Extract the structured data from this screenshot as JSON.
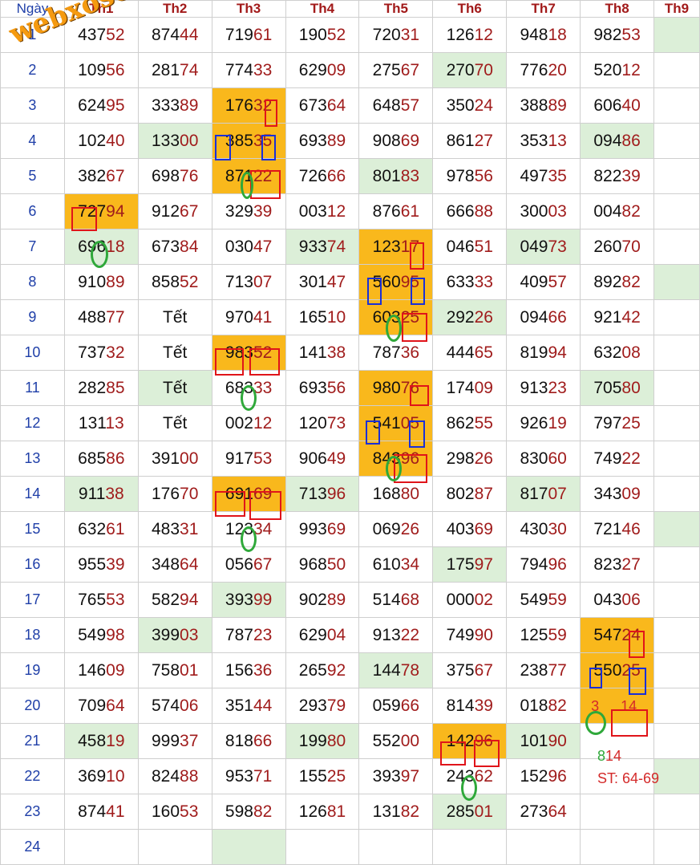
{
  "watermark": "webxoso.net",
  "headers": [
    "Ngày",
    "Th1",
    "Th2",
    "Th3",
    "Th4",
    "Th5",
    "Th6",
    "Th7",
    "Th8",
    "Th9"
  ],
  "rows": [
    {
      "day": "1",
      "cells": [
        {
          "v": "43752"
        },
        {
          "v": "87444"
        },
        {
          "v": "71961"
        },
        {
          "v": "19052"
        },
        {
          "v": "72031"
        },
        {
          "v": "12612"
        },
        {
          "v": "94818"
        },
        {
          "v": "98253"
        },
        {
          "v": "",
          "bg": "g"
        }
      ]
    },
    {
      "day": "2",
      "cells": [
        {
          "v": "10956"
        },
        {
          "v": "28174"
        },
        {
          "v": "77433"
        },
        {
          "v": "62909"
        },
        {
          "v": "27567"
        },
        {
          "v": "27070",
          "bg": "g"
        },
        {
          "v": "77620"
        },
        {
          "v": "52012"
        },
        {
          "v": ""
        }
      ]
    },
    {
      "day": "3",
      "cells": [
        {
          "v": "62495"
        },
        {
          "v": "33389"
        },
        {
          "v": "17632",
          "bg": "o"
        },
        {
          "v": "67364"
        },
        {
          "v": "64857"
        },
        {
          "v": "35024"
        },
        {
          "v": "38889"
        },
        {
          "v": "60640"
        },
        {
          "v": ""
        }
      ]
    },
    {
      "day": "4",
      "cells": [
        {
          "v": "10240"
        },
        {
          "v": "13300",
          "bg": "g"
        },
        {
          "v": "38535",
          "bg": "o"
        },
        {
          "v": "69389"
        },
        {
          "v": "90869"
        },
        {
          "v": "86127"
        },
        {
          "v": "35313"
        },
        {
          "v": "09486",
          "bg": "g"
        },
        {
          "v": ""
        }
      ]
    },
    {
      "day": "5",
      "cells": [
        {
          "v": "38267"
        },
        {
          "v": "69876"
        },
        {
          "v": "87122",
          "bg": "o"
        },
        {
          "v": "72666"
        },
        {
          "v": "80183",
          "bg": "g"
        },
        {
          "v": "97856"
        },
        {
          "v": "49735"
        },
        {
          "v": "82239"
        },
        {
          "v": ""
        }
      ]
    },
    {
      "day": "6",
      "cells": [
        {
          "v": "72794",
          "bg": "o"
        },
        {
          "v": "91267"
        },
        {
          "v": "32939"
        },
        {
          "v": "00312"
        },
        {
          "v": "87661"
        },
        {
          "v": "66688"
        },
        {
          "v": "30003"
        },
        {
          "v": "00482"
        },
        {
          "v": ""
        }
      ]
    },
    {
      "day": "7",
      "cells": [
        {
          "v": "69618",
          "bg": "g"
        },
        {
          "v": "67384"
        },
        {
          "v": "03047"
        },
        {
          "v": "93374",
          "bg": "g"
        },
        {
          "v": "12317",
          "bg": "o"
        },
        {
          "v": "04651"
        },
        {
          "v": "04973",
          "bg": "g"
        },
        {
          "v": "26070"
        },
        {
          "v": ""
        }
      ]
    },
    {
      "day": "8",
      "cells": [
        {
          "v": "91089"
        },
        {
          "v": "85852"
        },
        {
          "v": "71307"
        },
        {
          "v": "30147"
        },
        {
          "v": "56095",
          "bg": "o"
        },
        {
          "v": "63333"
        },
        {
          "v": "40957"
        },
        {
          "v": "89282"
        },
        {
          "v": "",
          "bg": "g"
        }
      ]
    },
    {
      "day": "9",
      "cells": [
        {
          "v": "48877"
        },
        {
          "v": "Tết"
        },
        {
          "v": "97041"
        },
        {
          "v": "16510"
        },
        {
          "v": "60325",
          "bg": "o"
        },
        {
          "v": "29226",
          "bg": "g"
        },
        {
          "v": "09466"
        },
        {
          "v": "92142"
        },
        {
          "v": ""
        }
      ]
    },
    {
      "day": "10",
      "cells": [
        {
          "v": "73732"
        },
        {
          "v": "Tết"
        },
        {
          "v": "98352",
          "bg": "o"
        },
        {
          "v": "14138"
        },
        {
          "v": "78736"
        },
        {
          "v": "44465"
        },
        {
          "v": "81994"
        },
        {
          "v": "63208"
        },
        {
          "v": ""
        }
      ]
    },
    {
      "day": "11",
      "cells": [
        {
          "v": "28285"
        },
        {
          "v": "Tết",
          "bg": "g"
        },
        {
          "v": "68333"
        },
        {
          "v": "69356"
        },
        {
          "v": "98076",
          "bg": "o"
        },
        {
          "v": "17409"
        },
        {
          "v": "91323"
        },
        {
          "v": "70580",
          "bg": "g"
        },
        {
          "v": ""
        }
      ]
    },
    {
      "day": "12",
      "cells": [
        {
          "v": "13113"
        },
        {
          "v": "Tết"
        },
        {
          "v": "00212"
        },
        {
          "v": "12073"
        },
        {
          "v": "54105",
          "bg": "o"
        },
        {
          "v": "86255"
        },
        {
          "v": "92619"
        },
        {
          "v": "79725"
        },
        {
          "v": ""
        }
      ]
    },
    {
      "day": "13",
      "cells": [
        {
          "v": "68586"
        },
        {
          "v": "39100"
        },
        {
          "v": "91753"
        },
        {
          "v": "90649"
        },
        {
          "v": "84396",
          "bg": "o"
        },
        {
          "v": "29826"
        },
        {
          "v": "83060"
        },
        {
          "v": "74922"
        },
        {
          "v": ""
        }
      ]
    },
    {
      "day": "14",
      "cells": [
        {
          "v": "91138",
          "bg": "g"
        },
        {
          "v": "17670"
        },
        {
          "v": "69169",
          "bg": "o"
        },
        {
          "v": "71396",
          "bg": "g"
        },
        {
          "v": "16880"
        },
        {
          "v": "80287"
        },
        {
          "v": "81707",
          "bg": "g"
        },
        {
          "v": "34309"
        },
        {
          "v": ""
        }
      ]
    },
    {
      "day": "15",
      "cells": [
        {
          "v": "63261"
        },
        {
          "v": "48331"
        },
        {
          "v": "12334"
        },
        {
          "v": "99369"
        },
        {
          "v": "06926"
        },
        {
          "v": "40369"
        },
        {
          "v": "43030"
        },
        {
          "v": "72146"
        },
        {
          "v": "",
          "bg": "g"
        }
      ]
    },
    {
      "day": "16",
      "cells": [
        {
          "v": "95539"
        },
        {
          "v": "34864"
        },
        {
          "v": "05667"
        },
        {
          "v": "96850"
        },
        {
          "v": "61034"
        },
        {
          "v": "17597",
          "bg": "g"
        },
        {
          "v": "79496"
        },
        {
          "v": "82327"
        },
        {
          "v": ""
        }
      ]
    },
    {
      "day": "17",
      "cells": [
        {
          "v": "76553"
        },
        {
          "v": "58294"
        },
        {
          "v": "39399",
          "bg": "g"
        },
        {
          "v": "90289"
        },
        {
          "v": "51468"
        },
        {
          "v": "00002"
        },
        {
          "v": "54959"
        },
        {
          "v": "04306"
        },
        {
          "v": ""
        }
      ]
    },
    {
      "day": "18",
      "cells": [
        {
          "v": "54998"
        },
        {
          "v": "39903",
          "bg": "g"
        },
        {
          "v": "78723"
        },
        {
          "v": "62904"
        },
        {
          "v": "91322"
        },
        {
          "v": "74990"
        },
        {
          "v": "12559"
        },
        {
          "v": "54724",
          "bg": "o"
        },
        {
          "v": ""
        }
      ]
    },
    {
      "day": "19",
      "cells": [
        {
          "v": "14609"
        },
        {
          "v": "75801"
        },
        {
          "v": "15636"
        },
        {
          "v": "26592"
        },
        {
          "v": "14478",
          "bg": "g"
        },
        {
          "v": "37567"
        },
        {
          "v": "23877"
        },
        {
          "v": "55025",
          "bg": "o"
        },
        {
          "v": ""
        }
      ]
    },
    {
      "day": "20",
      "cells": [
        {
          "v": "70964"
        },
        {
          "v": "57406"
        },
        {
          "v": "35144"
        },
        {
          "v": "29379"
        },
        {
          "v": "05966"
        },
        {
          "v": "81439"
        },
        {
          "v": "01882"
        },
        {
          "v": "",
          "bg": "o",
          "special": "predict"
        },
        {
          "v": ""
        }
      ]
    },
    {
      "day": "21",
      "cells": [
        {
          "v": "45819",
          "bg": "g"
        },
        {
          "v": "99937"
        },
        {
          "v": "81866"
        },
        {
          "v": "19980",
          "bg": "g"
        },
        {
          "v": "55200"
        },
        {
          "v": "14296",
          "bg": "o"
        },
        {
          "v": "10190",
          "bg": "g"
        },
        {
          "v": ""
        },
        {
          "v": ""
        }
      ]
    },
    {
      "day": "22",
      "cells": [
        {
          "v": "36910"
        },
        {
          "v": "82488"
        },
        {
          "v": "95371"
        },
        {
          "v": "15525"
        },
        {
          "v": "39397"
        },
        {
          "v": "24362"
        },
        {
          "v": "15296"
        },
        {
          "v": ""
        },
        {
          "v": "",
          "bg": "g"
        }
      ]
    },
    {
      "day": "23",
      "cells": [
        {
          "v": "87441"
        },
        {
          "v": "16053"
        },
        {
          "v": "59882"
        },
        {
          "v": "12681"
        },
        {
          "v": "13182"
        },
        {
          "v": "28501",
          "bg": "g"
        },
        {
          "v": "27364"
        },
        {
          "v": ""
        },
        {
          "v": ""
        }
      ]
    },
    {
      "day": "24",
      "cells": [
        {
          "v": ""
        },
        {
          "v": ""
        },
        {
          "v": "",
          "bg": "g"
        },
        {
          "v": ""
        },
        {
          "v": ""
        },
        {
          "v": ""
        },
        {
          "v": ""
        },
        {
          "v": ""
        },
        {
          "v": ""
        }
      ]
    }
  ],
  "predict_cell": {
    "green_digit": "3",
    "red_digits": "14"
  },
  "notes": {
    "num_lead": "8",
    "num_rest": "14",
    "st": "ST: 64-69"
  },
  "colors": {
    "green_bg": "#dcefd8",
    "orange_bg": "#f9b81c",
    "mark_red": "#e0141a",
    "mark_blue": "#1a2fd8",
    "mark_green": "#2fa83a"
  }
}
